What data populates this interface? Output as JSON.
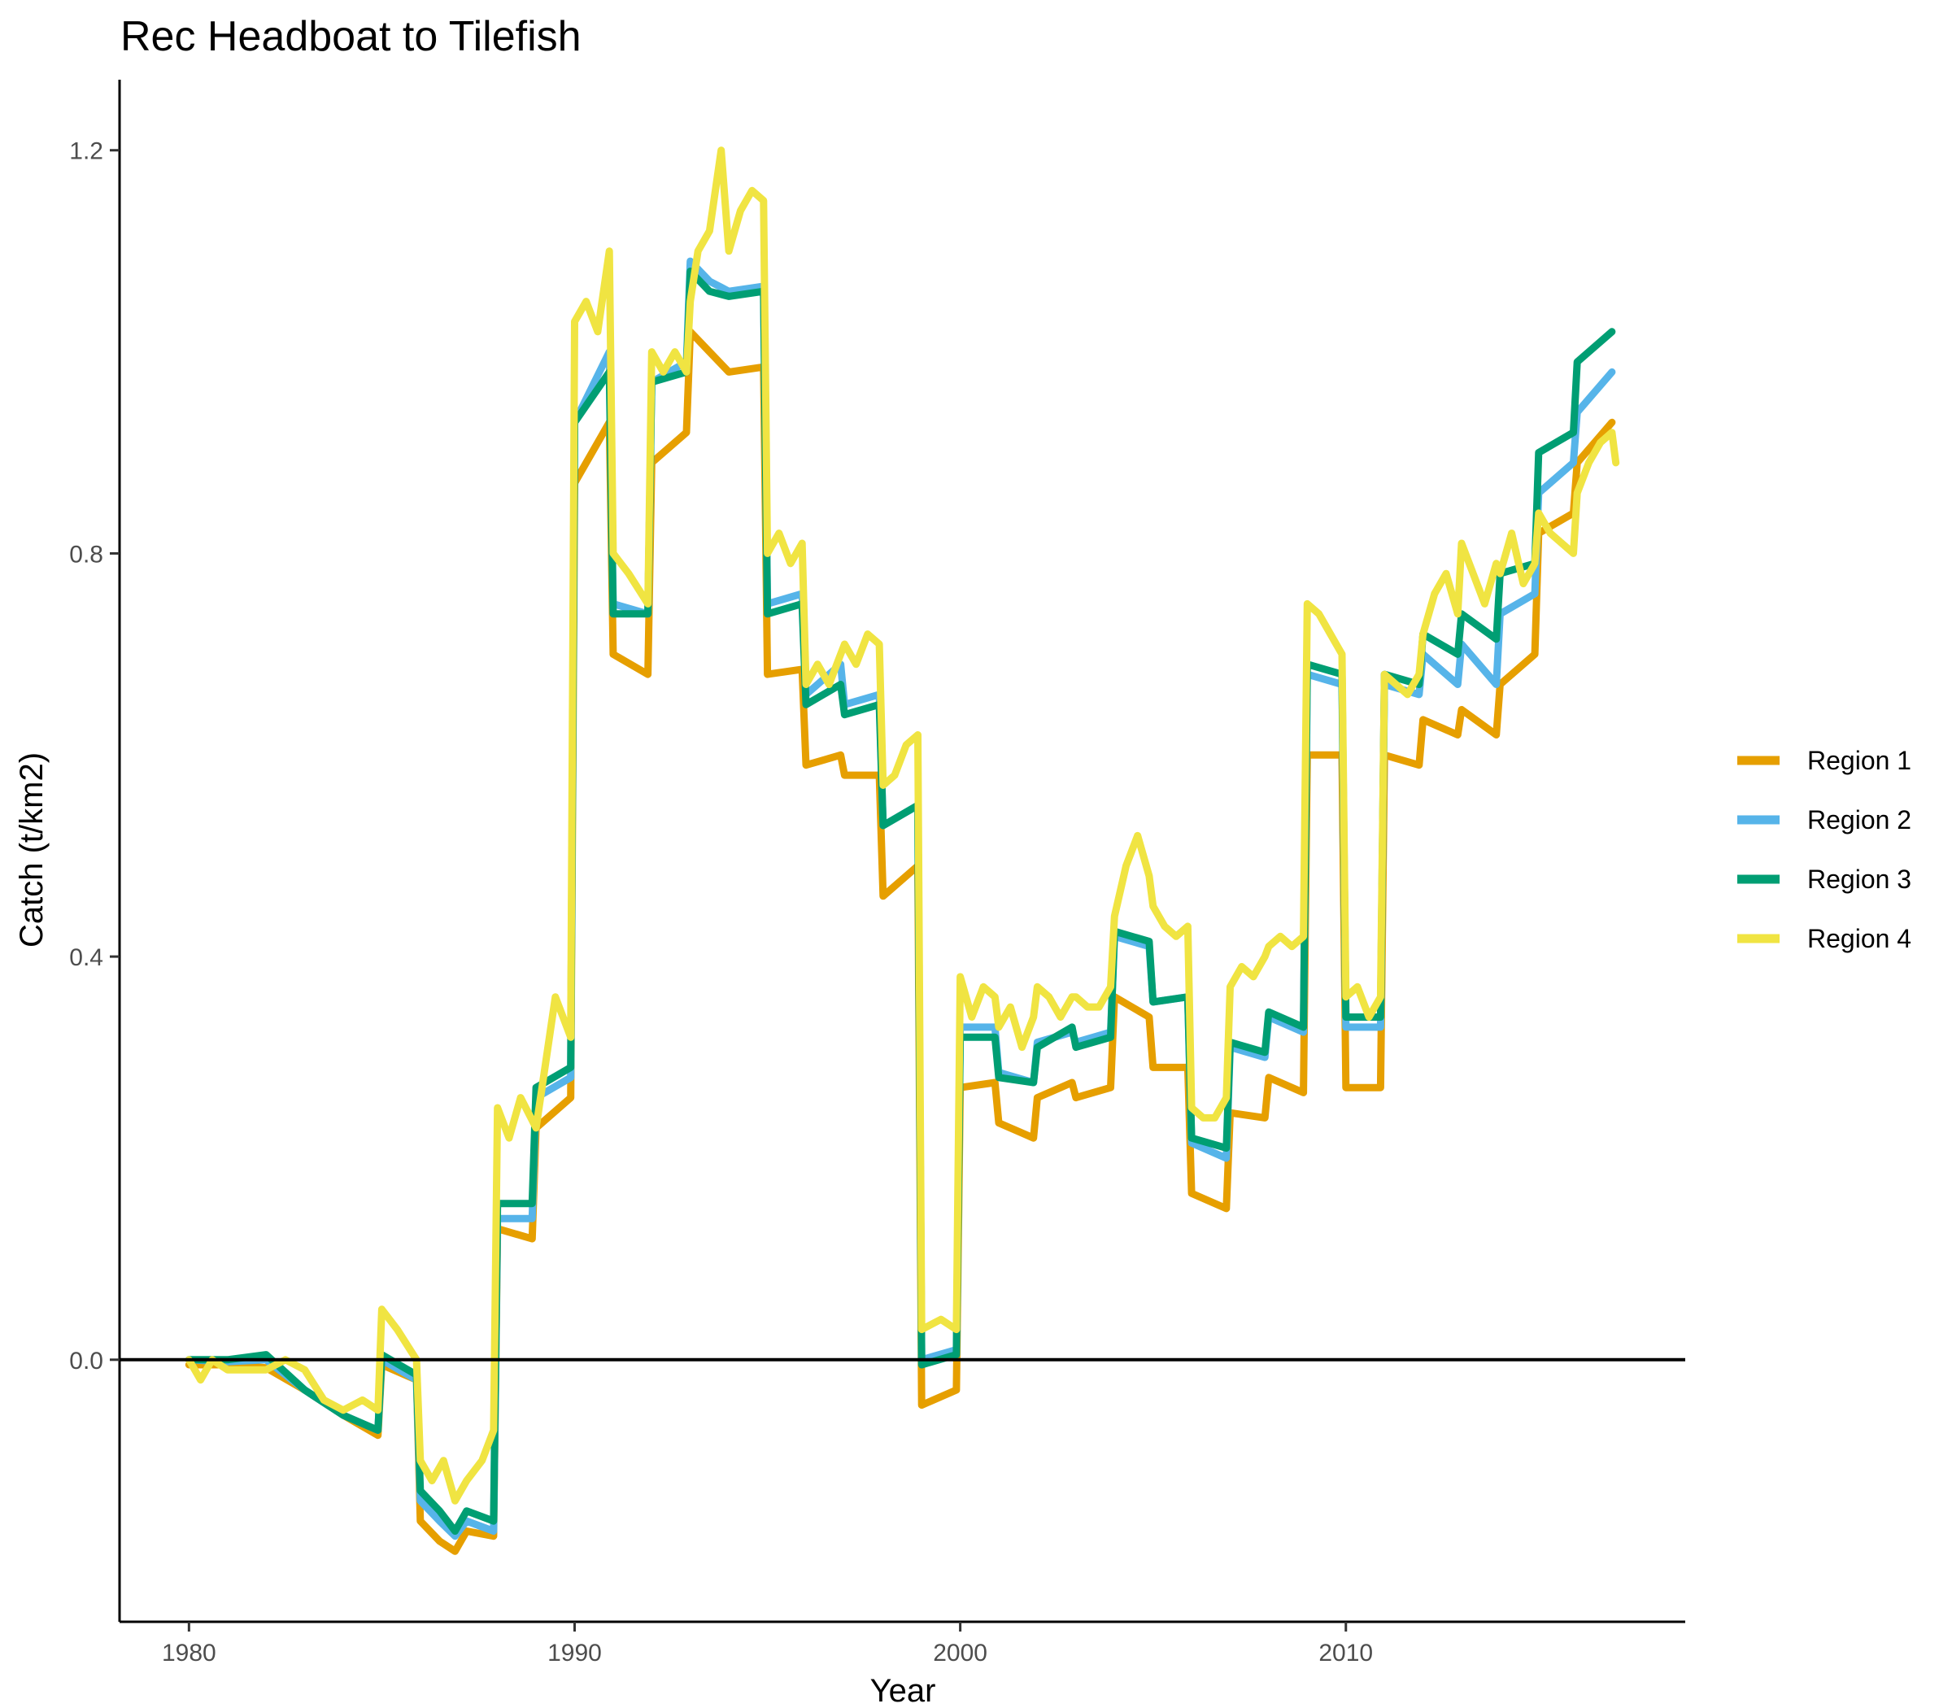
{
  "chart_data": {
    "type": "line",
    "title": "Rec Headboat to Tilefish",
    "xlabel": "Year",
    "ylabel": "Catch (t/km2)",
    "xlim": [
      1978.2,
      2018.8
    ],
    "ylim": [
      -0.26,
      1.27
    ],
    "xticks": [
      1980,
      1990,
      2000,
      2010
    ],
    "yticks": [
      0.0,
      0.4,
      0.8,
      1.2
    ],
    "ytick_labels": [
      "0.0",
      "0.4",
      "0.8",
      "1.2"
    ],
    "reference_line_y": 0,
    "grid": false,
    "legend_position": "right",
    "series": [
      {
        "name": "Region 1",
        "color": "#E69F00",
        "x": [
          1980,
          1981,
          1982,
          1983,
          1984,
          1984.9,
          1985,
          1985.9,
          1986,
          1986.5,
          1986.9,
          1987.2,
          1987.9,
          1988,
          1988.9,
          1989,
          1989.9,
          1990,
          1990.9,
          1991,
          1991.9,
          1992,
          1992.9,
          1993,
          1993.5,
          1994,
          1994.9,
          1995,
          1995.9,
          1996,
          1996.9,
          1997,
          1997.9,
          1998,
          1998.9,
          1999,
          1999.9,
          2000,
          2000.9,
          2001,
          2001.9,
          2002,
          2002.9,
          2003,
          2003.9,
          2004,
          2004.9,
          2005,
          2005.9,
          2006,
          2006.9,
          2007,
          2007.9,
          2008,
          2008.9,
          2009,
          2009.9,
          2010,
          2010.9,
          2011,
          2011.9,
          2012,
          2012.9,
          2013,
          2013.9,
          2014,
          2014.9,
          2015,
          2015.9,
          2016,
          2016.9
        ],
        "values": [
          -0.005,
          -0.005,
          -0.008,
          -0.03,
          -0.055,
          -0.075,
          -0.005,
          -0.02,
          -0.16,
          -0.18,
          -0.19,
          -0.17,
          -0.175,
          0.13,
          0.12,
          0.23,
          0.26,
          0.87,
          0.93,
          0.7,
          0.68,
          0.89,
          0.92,
          1.02,
          1.0,
          0.98,
          0.985,
          0.68,
          0.685,
          0.59,
          0.6,
          0.58,
          0.58,
          0.46,
          0.49,
          -0.045,
          -0.03,
          0.27,
          0.275,
          0.235,
          0.22,
          0.26,
          0.275,
          0.26,
          0.27,
          0.36,
          0.34,
          0.29,
          0.29,
          0.165,
          0.15,
          0.245,
          0.24,
          0.28,
          0.265,
          0.6,
          0.6,
          0.27,
          0.27,
          0.6,
          0.59,
          0.635,
          0.62,
          0.645,
          0.62,
          0.67,
          0.7,
          0.82,
          0.84,
          0.89,
          0.93
        ]
      },
      {
        "name": "Region 2",
        "color": "#56B4E9",
        "x": [
          1980,
          1981,
          1982,
          1983,
          1984,
          1984.9,
          1985,
          1985.9,
          1986,
          1986.5,
          1986.9,
          1987.2,
          1987.9,
          1988,
          1988.9,
          1989,
          1989.9,
          1990,
          1990.9,
          1991,
          1991.9,
          1992,
          1992.9,
          1993,
          1993.5,
          1994,
          1994.9,
          1995,
          1995.9,
          1996,
          1996.9,
          1997,
          1997.9,
          1998,
          1998.9,
          1999,
          1999.9,
          2000,
          2000.9,
          2001,
          2001.9,
          2002,
          2002.9,
          2003,
          2003.9,
          2004,
          2004.9,
          2005,
          2005.9,
          2006,
          2006.9,
          2007,
          2007.9,
          2008,
          2008.9,
          2009,
          2009.9,
          2010,
          2010.9,
          2011,
          2011.9,
          2012,
          2012.9,
          2013,
          2013.9,
          2014,
          2014.9,
          2015,
          2015.9,
          2016,
          2016.9
        ],
        "values": [
          0.0,
          -0.002,
          0.0,
          -0.03,
          -0.055,
          -0.07,
          0.0,
          -0.02,
          -0.14,
          -0.16,
          -0.175,
          -0.16,
          -0.17,
          0.14,
          0.14,
          0.26,
          0.28,
          0.93,
          1.0,
          0.75,
          0.74,
          0.97,
          0.99,
          1.09,
          1.07,
          1.06,
          1.065,
          0.75,
          0.76,
          0.66,
          0.69,
          0.65,
          0.66,
          0.53,
          0.55,
          0.0,
          0.01,
          0.33,
          0.33,
          0.285,
          0.275,
          0.315,
          0.325,
          0.315,
          0.325,
          0.42,
          0.41,
          0.355,
          0.36,
          0.215,
          0.2,
          0.31,
          0.3,
          0.34,
          0.325,
          0.68,
          0.67,
          0.33,
          0.33,
          0.67,
          0.66,
          0.7,
          0.67,
          0.71,
          0.67,
          0.74,
          0.76,
          0.86,
          0.89,
          0.94,
          0.98
        ]
      },
      {
        "name": "Region 3",
        "color": "#009E73",
        "x": [
          1980,
          1981,
          1982,
          1983,
          1984,
          1984.9,
          1985,
          1985.9,
          1986,
          1986.5,
          1986.9,
          1987.2,
          1987.9,
          1988,
          1988.9,
          1989,
          1989.9,
          1990,
          1990.9,
          1991,
          1991.9,
          1992,
          1992.9,
          1993,
          1993.5,
          1994,
          1994.9,
          1995,
          1995.9,
          1996,
          1996.9,
          1997,
          1997.9,
          1998,
          1998.9,
          1999,
          1999.9,
          2000,
          2000.9,
          2001,
          2001.9,
          2002,
          2002.9,
          2003,
          2003.9,
          2004,
          2004.9,
          2005,
          2005.9,
          2006,
          2006.9,
          2007,
          2007.9,
          2008,
          2008.9,
          2009,
          2009.9,
          2010,
          2010.9,
          2011,
          2011.9,
          2012,
          2012.9,
          2013,
          2013.9,
          2014,
          2014.9,
          2015,
          2015.9,
          2016,
          2016.9
        ],
        "values": [
          0.0,
          0.0,
          0.005,
          -0.03,
          -0.055,
          -0.07,
          0.005,
          -0.015,
          -0.13,
          -0.15,
          -0.17,
          -0.15,
          -0.16,
          0.155,
          0.155,
          0.27,
          0.29,
          0.93,
          0.98,
          0.74,
          0.74,
          0.97,
          0.98,
          1.08,
          1.06,
          1.055,
          1.06,
          0.74,
          0.75,
          0.65,
          0.67,
          0.64,
          0.65,
          0.53,
          0.55,
          -0.005,
          0.005,
          0.32,
          0.32,
          0.28,
          0.275,
          0.31,
          0.33,
          0.31,
          0.32,
          0.425,
          0.415,
          0.355,
          0.36,
          0.22,
          0.21,
          0.315,
          0.305,
          0.345,
          0.33,
          0.69,
          0.68,
          0.34,
          0.34,
          0.68,
          0.67,
          0.72,
          0.7,
          0.74,
          0.715,
          0.78,
          0.79,
          0.9,
          0.92,
          0.99,
          1.02
        ]
      },
      {
        "name": "Region 4",
        "color": "#F0E442",
        "x": [
          1980,
          1980.3,
          1980.6,
          1981,
          1981.5,
          1982,
          1982.5,
          1983,
          1983.5,
          1984,
          1984.5,
          1984.9,
          1985,
          1985.4,
          1985.9,
          1986,
          1986.3,
          1986.6,
          1986.9,
          1987.2,
          1987.6,
          1987.9,
          1988,
          1988.3,
          1988.6,
          1989,
          1989.5,
          1989.9,
          1990,
          1990.3,
          1990.6,
          1990.9,
          1991,
          1991.4,
          1991.9,
          1992,
          1992.3,
          1992.6,
          1992.9,
          1993,
          1993.2,
          1993.5,
          1993.8,
          1994,
          1994.3,
          1994.6,
          1994.9,
          1995,
          1995.3,
          1995.6,
          1995.9,
          1996,
          1996.3,
          1996.6,
          1996.9,
          1997,
          1997.3,
          1997.6,
          1997.9,
          1998,
          1998.3,
          1998.6,
          1998.9,
          1999,
          1999.5,
          1999.9,
          2000,
          2000.3,
          2000.6,
          2000.9,
          2001,
          2001.3,
          2001.6,
          2001.9,
          2002,
          2002.3,
          2002.6,
          2002.9,
          2003,
          2003.3,
          2003.6,
          2003.9,
          2004,
          2004.3,
          2004.6,
          2004.9,
          2005,
          2005.3,
          2005.6,
          2005.9,
          2006,
          2006.3,
          2006.6,
          2006.9,
          2007,
          2007.3,
          2007.6,
          2007.9,
          2008,
          2008.3,
          2008.6,
          2008.9,
          2009,
          2009.3,
          2009.6,
          2009.9,
          2010,
          2010.3,
          2010.6,
          2010.9,
          2011,
          2011.3,
          2011.6,
          2011.9,
          2012,
          2012.3,
          2012.6,
          2012.9,
          2013,
          2013.3,
          2013.6,
          2013.9,
          2014,
          2014.3,
          2014.6,
          2014.9,
          2015,
          2015.3,
          2015.6,
          2015.9,
          2016,
          2016.3,
          2016.6,
          2016.9,
          2017
        ],
        "values": [
          0.0,
          -0.02,
          0.0,
          -0.01,
          -0.01,
          -0.01,
          0.0,
          -0.01,
          -0.04,
          -0.05,
          -0.04,
          -0.05,
          0.05,
          0.03,
          0.0,
          -0.1,
          -0.12,
          -0.1,
          -0.14,
          -0.12,
          -0.1,
          -0.07,
          0.25,
          0.22,
          0.26,
          0.23,
          0.36,
          0.32,
          1.03,
          1.05,
          1.02,
          1.1,
          0.8,
          0.78,
          0.75,
          1.0,
          0.98,
          1.0,
          0.98,
          1.05,
          1.1,
          1.12,
          1.2,
          1.1,
          1.14,
          1.16,
          1.15,
          0.8,
          0.82,
          0.79,
          0.81,
          0.67,
          0.69,
          0.67,
          0.7,
          0.71,
          0.69,
          0.72,
          0.71,
          0.57,
          0.58,
          0.61,
          0.62,
          0.03,
          0.04,
          0.03,
          0.38,
          0.34,
          0.37,
          0.36,
          0.33,
          0.35,
          0.31,
          0.34,
          0.37,
          0.36,
          0.34,
          0.36,
          0.36,
          0.35,
          0.35,
          0.37,
          0.44,
          0.49,
          0.52,
          0.48,
          0.45,
          0.43,
          0.42,
          0.43,
          0.25,
          0.24,
          0.24,
          0.26,
          0.37,
          0.39,
          0.38,
          0.4,
          0.41,
          0.42,
          0.41,
          0.42,
          0.75,
          0.74,
          0.72,
          0.7,
          0.36,
          0.37,
          0.34,
          0.36,
          0.68,
          0.67,
          0.66,
          0.68,
          0.72,
          0.76,
          0.78,
          0.74,
          0.81,
          0.78,
          0.75,
          0.79,
          0.78,
          0.82,
          0.77,
          0.79,
          0.84,
          0.82,
          0.81,
          0.8,
          0.86,
          0.89,
          0.91,
          0.92,
          0.89
        ]
      }
    ]
  }
}
